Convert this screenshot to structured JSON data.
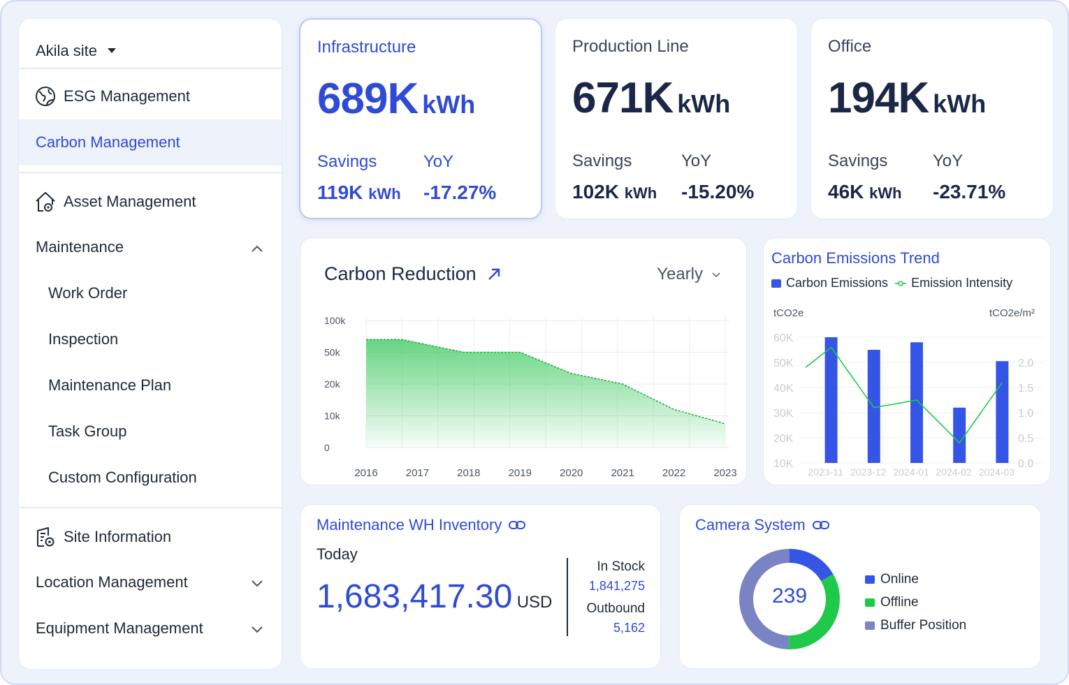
{
  "sidebar": {
    "site_label": "Akila site",
    "esg": "ESG Management",
    "carbon": "Carbon Management",
    "asset": "Asset Management",
    "maintenance": "Maintenance",
    "maintenance_items": [
      "Work Order",
      "Inspection",
      "Maintenance Plan",
      "Task Group",
      "Custom Configuration"
    ],
    "site_info": "Site Information",
    "location": "Location Management",
    "equipment": "Equipment Management"
  },
  "kpis": [
    {
      "title": "Infrastructure",
      "value": "689K",
      "unit": "kWh",
      "savings_label": "Savings",
      "yoy_label": "YoY",
      "savings_value": "119K",
      "savings_unit": "kWh",
      "yoy_value": "-17.27%"
    },
    {
      "title": "Production Line",
      "value": "671K",
      "unit": "kWh",
      "savings_label": "Savings",
      "yoy_label": "YoY",
      "savings_value": "102K",
      "savings_unit": "kWh",
      "yoy_value": "-15.20%"
    },
    {
      "title": "Office",
      "value": "194K",
      "unit": "kWh",
      "savings_label": "Savings",
      "yoy_label": "YoY",
      "savings_value": "46K",
      "savings_unit": "kWh",
      "yoy_value": "-23.71%"
    }
  ],
  "reduction": {
    "title": "Carbon Reduction",
    "period": "Yearly"
  },
  "trend": {
    "title": "Carbon Emissions Trend",
    "legend_bar": "Carbon Emissions",
    "legend_line": "Emission Intensity",
    "left_unit": "tCO2e",
    "right_unit": "tCO2e/m²"
  },
  "inventory": {
    "title": "Maintenance WH Inventory",
    "today": "Today",
    "amount": "1,683,417.30",
    "currency": "USD",
    "in_stock_label": "In Stock",
    "in_stock_value": "1,841,275",
    "outbound_label": "Outbound",
    "outbound_value": "5,162"
  },
  "camera": {
    "title": "Camera System",
    "total": "239",
    "legend": [
      "Online",
      "Offline",
      "Buffer Position"
    ]
  },
  "colors": {
    "primary": "#2f4bd6",
    "bar": "#3455e6",
    "green": "#1fc94a",
    "buffer": "#7a83c4",
    "navy": "#1c2748"
  },
  "chart_data": [
    {
      "type": "area",
      "title": "Carbon Reduction",
      "x": [
        "2016",
        "2017",
        "2018",
        "2019",
        "2020",
        "2021",
        "2022",
        "2023"
      ],
      "y_ticks": [
        "0",
        "10k",
        "20k",
        "50k",
        "100k"
      ],
      "y_tick_values": [
        0,
        10000,
        20000,
        50000,
        100000
      ],
      "points": [
        {
          "x": "2016",
          "y": 70000
        },
        {
          "x": "2016.7",
          "y": 70000
        },
        {
          "x": "2017.9",
          "y": 50000
        },
        {
          "x": "2019",
          "y": 50000
        },
        {
          "x": "2020",
          "y": 30000
        },
        {
          "x": "2021",
          "y": 20000
        },
        {
          "x": "2022",
          "y": 12000
        },
        {
          "x": "2023",
          "y": 7500
        }
      ],
      "color": "#34c759"
    },
    {
      "type": "bar",
      "title": "Carbon Emissions Trend",
      "categories": [
        "2023-11",
        "2023-12",
        "2024-01",
        "2024-02",
        "2024-03"
      ],
      "series": [
        {
          "name": "Carbon Emissions",
          "axis": "left",
          "values": [
            60000,
            55000,
            58000,
            32000,
            50500
          ]
        },
        {
          "name": "Emission Intensity",
          "axis": "right",
          "type": "line",
          "values": [
            2.3,
            1.1,
            1.25,
            0.4,
            1.6
          ]
        }
      ],
      "left_ticks": [
        "10K",
        "20K",
        "30K",
        "40K",
        "50K",
        "60K"
      ],
      "right_ticks": [
        "0.0",
        "0.5",
        "1.0",
        "1.5",
        "2.0"
      ],
      "ylim_left": [
        10000,
        60000
      ],
      "ylim_right": [
        0,
        2.5
      ]
    },
    {
      "type": "pie",
      "title": "Camera System",
      "labels": [
        "Online",
        "Offline",
        "Buffer Position"
      ],
      "values": [
        40,
        80,
        119
      ],
      "total": 239
    }
  ]
}
